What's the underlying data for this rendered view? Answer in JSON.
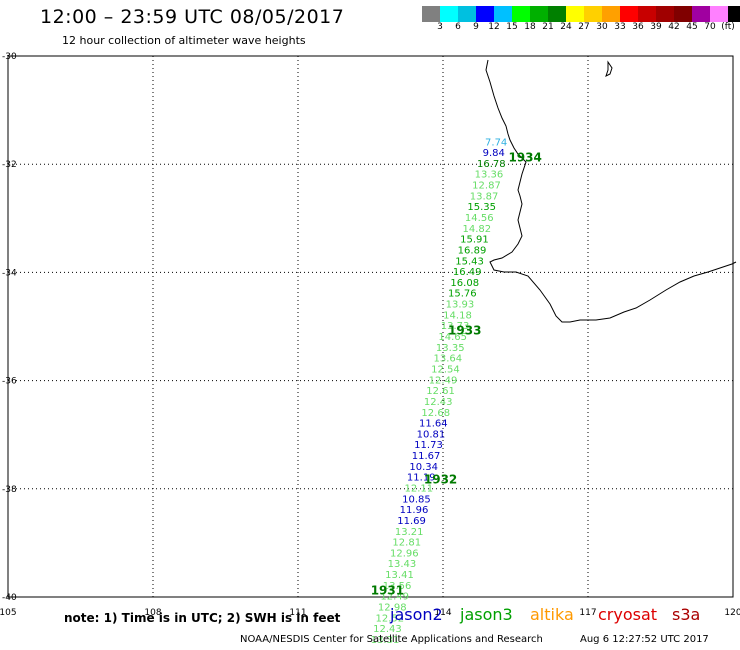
{
  "header": {
    "title": "12:00 – 23:59 UTC 08/05/2017",
    "subtitle": "12 hour collection of altimeter wave heights"
  },
  "colorbar": {
    "colors": [
      "#808080",
      "#00ffff",
      "#00c0e0",
      "#0000ff",
      "#00c0ff",
      "#00ff00",
      "#00b000",
      "#008000",
      "#ffff00",
      "#ffd000",
      "#ffa000",
      "#ff0000",
      "#c80000",
      "#a00000",
      "#800000",
      "#a000a0",
      "#ff80ff",
      "#000000"
    ],
    "labels": [
      "3",
      "6",
      "9",
      "12",
      "15",
      "18",
      "21",
      "24",
      "27",
      "30",
      "33",
      "36",
      "39",
      "42",
      "45",
      "70",
      "(ft)"
    ]
  },
  "map": {
    "lon_labels": [
      "105",
      "108",
      "111",
      "114",
      "117",
      "120"
    ],
    "lat_labels": [
      "-30",
      "-32",
      "-34",
      "-36",
      "-38",
      "-40"
    ],
    "lon_range": [
      105,
      120
    ],
    "lat_range": [
      -30,
      -40
    ],
    "grid": "dotted"
  },
  "track": {
    "points": [
      {
        "lon": 115.1,
        "lat": -31.65,
        "v": "7.74",
        "c": "#2fb0e0"
      },
      {
        "lon": 115.05,
        "lat": -31.85,
        "v": "9.84",
        "c": "#0000c0"
      },
      {
        "lon": 115.0,
        "lat": -32.05,
        "v": "16.78",
        "c": "#008000"
      },
      {
        "lon": 114.95,
        "lat": -32.25,
        "v": "13.36",
        "c": "#66dd66"
      },
      {
        "lon": 114.9,
        "lat": -32.45,
        "v": "12.87",
        "c": "#66dd66"
      },
      {
        "lon": 114.85,
        "lat": -32.65,
        "v": "13.87",
        "c": "#66dd66"
      },
      {
        "lon": 114.8,
        "lat": -32.85,
        "v": "15.35",
        "c": "#00a000"
      },
      {
        "lon": 114.75,
        "lat": -33.05,
        "v": "14.56",
        "c": "#66dd66"
      },
      {
        "lon": 114.7,
        "lat": -33.25,
        "v": "14.82",
        "c": "#66dd66"
      },
      {
        "lon": 114.65,
        "lat": -33.45,
        "v": "15.91",
        "c": "#00a000"
      },
      {
        "lon": 114.6,
        "lat": -33.65,
        "v": "16.89",
        "c": "#00a000"
      },
      {
        "lon": 114.55,
        "lat": -33.85,
        "v": "15.43",
        "c": "#00a000"
      },
      {
        "lon": 114.5,
        "lat": -34.05,
        "v": "16.49",
        "c": "#00a000"
      },
      {
        "lon": 114.45,
        "lat": -34.25,
        "v": "16.08",
        "c": "#00a000"
      },
      {
        "lon": 114.4,
        "lat": -34.45,
        "v": "15.76",
        "c": "#00a000"
      },
      {
        "lon": 114.35,
        "lat": -34.65,
        "v": "13.93",
        "c": "#66dd66"
      },
      {
        "lon": 114.3,
        "lat": -34.85,
        "v": "14.18",
        "c": "#66dd66"
      },
      {
        "lon": 114.25,
        "lat": -35.05,
        "v": "13.73",
        "c": "#66dd66"
      },
      {
        "lon": 114.2,
        "lat": -35.25,
        "v": "14.65",
        "c": "#66dd66"
      },
      {
        "lon": 114.15,
        "lat": -35.45,
        "v": "13.35",
        "c": "#66dd66"
      },
      {
        "lon": 114.1,
        "lat": -35.65,
        "v": "13.64",
        "c": "#66dd66"
      },
      {
        "lon": 114.05,
        "lat": -35.85,
        "v": "12.54",
        "c": "#66dd66"
      },
      {
        "lon": 114.0,
        "lat": -36.05,
        "v": "12.49",
        "c": "#66dd66"
      },
      {
        "lon": 113.95,
        "lat": -36.25,
        "v": "12.61",
        "c": "#66dd66"
      },
      {
        "lon": 113.9,
        "lat": -36.45,
        "v": "12.43",
        "c": "#66dd66"
      },
      {
        "lon": 113.85,
        "lat": -36.65,
        "v": "12.68",
        "c": "#66dd66"
      },
      {
        "lon": 113.8,
        "lat": -36.85,
        "v": "11.64",
        "c": "#0000c0"
      },
      {
        "lon": 113.75,
        "lat": -37.05,
        "v": "10.81",
        "c": "#0000c0"
      },
      {
        "lon": 113.7,
        "lat": -37.25,
        "v": "11.73",
        "c": "#0000c0"
      },
      {
        "lon": 113.65,
        "lat": -37.45,
        "v": "11.67",
        "c": "#0000c0"
      },
      {
        "lon": 113.6,
        "lat": -37.65,
        "v": "10.34",
        "c": "#0000c0"
      },
      {
        "lon": 113.55,
        "lat": -37.85,
        "v": "11.19",
        "c": "#0000c0"
      },
      {
        "lon": 113.5,
        "lat": -38.05,
        "v": "12.11",
        "c": "#66dd66"
      },
      {
        "lon": 113.45,
        "lat": -38.25,
        "v": "10.85",
        "c": "#0000c0"
      },
      {
        "lon": 113.4,
        "lat": -38.45,
        "v": "11.96",
        "c": "#0000c0"
      },
      {
        "lon": 113.35,
        "lat": -38.65,
        "v": "11.69",
        "c": "#0000c0"
      },
      {
        "lon": 113.3,
        "lat": -38.85,
        "v": "13.21",
        "c": "#66dd66"
      },
      {
        "lon": 113.25,
        "lat": -39.05,
        "v": "12.81",
        "c": "#66dd66"
      },
      {
        "lon": 113.2,
        "lat": -39.25,
        "v": "12.96",
        "c": "#66dd66"
      },
      {
        "lon": 113.15,
        "lat": -39.45,
        "v": "13.43",
        "c": "#66dd66"
      },
      {
        "lon": 113.1,
        "lat": -39.65,
        "v": "13.41",
        "c": "#66dd66"
      },
      {
        "lon": 113.05,
        "lat": -39.85,
        "v": "13.56",
        "c": "#66dd66"
      },
      {
        "lon": 113.0,
        "lat": -40.05,
        "v": "12.49",
        "c": "#66dd66"
      },
      {
        "lon": 112.95,
        "lat": -40.25,
        "v": "12.98",
        "c": "#66dd66"
      },
      {
        "lon": 112.9,
        "lat": -40.45,
        "v": "12.52",
        "c": "#66dd66"
      },
      {
        "lon": 112.85,
        "lat": -40.65,
        "v": "12.43",
        "c": "#66dd66"
      },
      {
        "lon": 112.8,
        "lat": -40.85,
        "v": "13.31",
        "c": "#66dd66"
      }
    ],
    "time_labels": [
      {
        "lon": 115.7,
        "lat": -31.95,
        "t": "1934"
      },
      {
        "lon": 114.45,
        "lat": -35.15,
        "t": "1933"
      },
      {
        "lon": 113.95,
        "lat": -37.9,
        "t": "1932"
      },
      {
        "lon": 112.85,
        "lat": -39.95,
        "t": "1931"
      }
    ]
  },
  "footer": {
    "note": "note: 1) Time is in UTC; 2) SWH is in feet",
    "satellites": [
      {
        "name": "jason2",
        "color": "#0000c0"
      },
      {
        "name": "jason3",
        "color": "#00a000"
      },
      {
        "name": "altika",
        "color": "#ff9900"
      },
      {
        "name": "cryosat",
        "color": "#dd0000"
      },
      {
        "name": "s3a",
        "color": "#aa0000"
      }
    ],
    "credit": "NOAA/NESDIS Center for Satellite Applications and Research",
    "timestamp": "Aug  6 12:27:52 UTC 2017"
  }
}
